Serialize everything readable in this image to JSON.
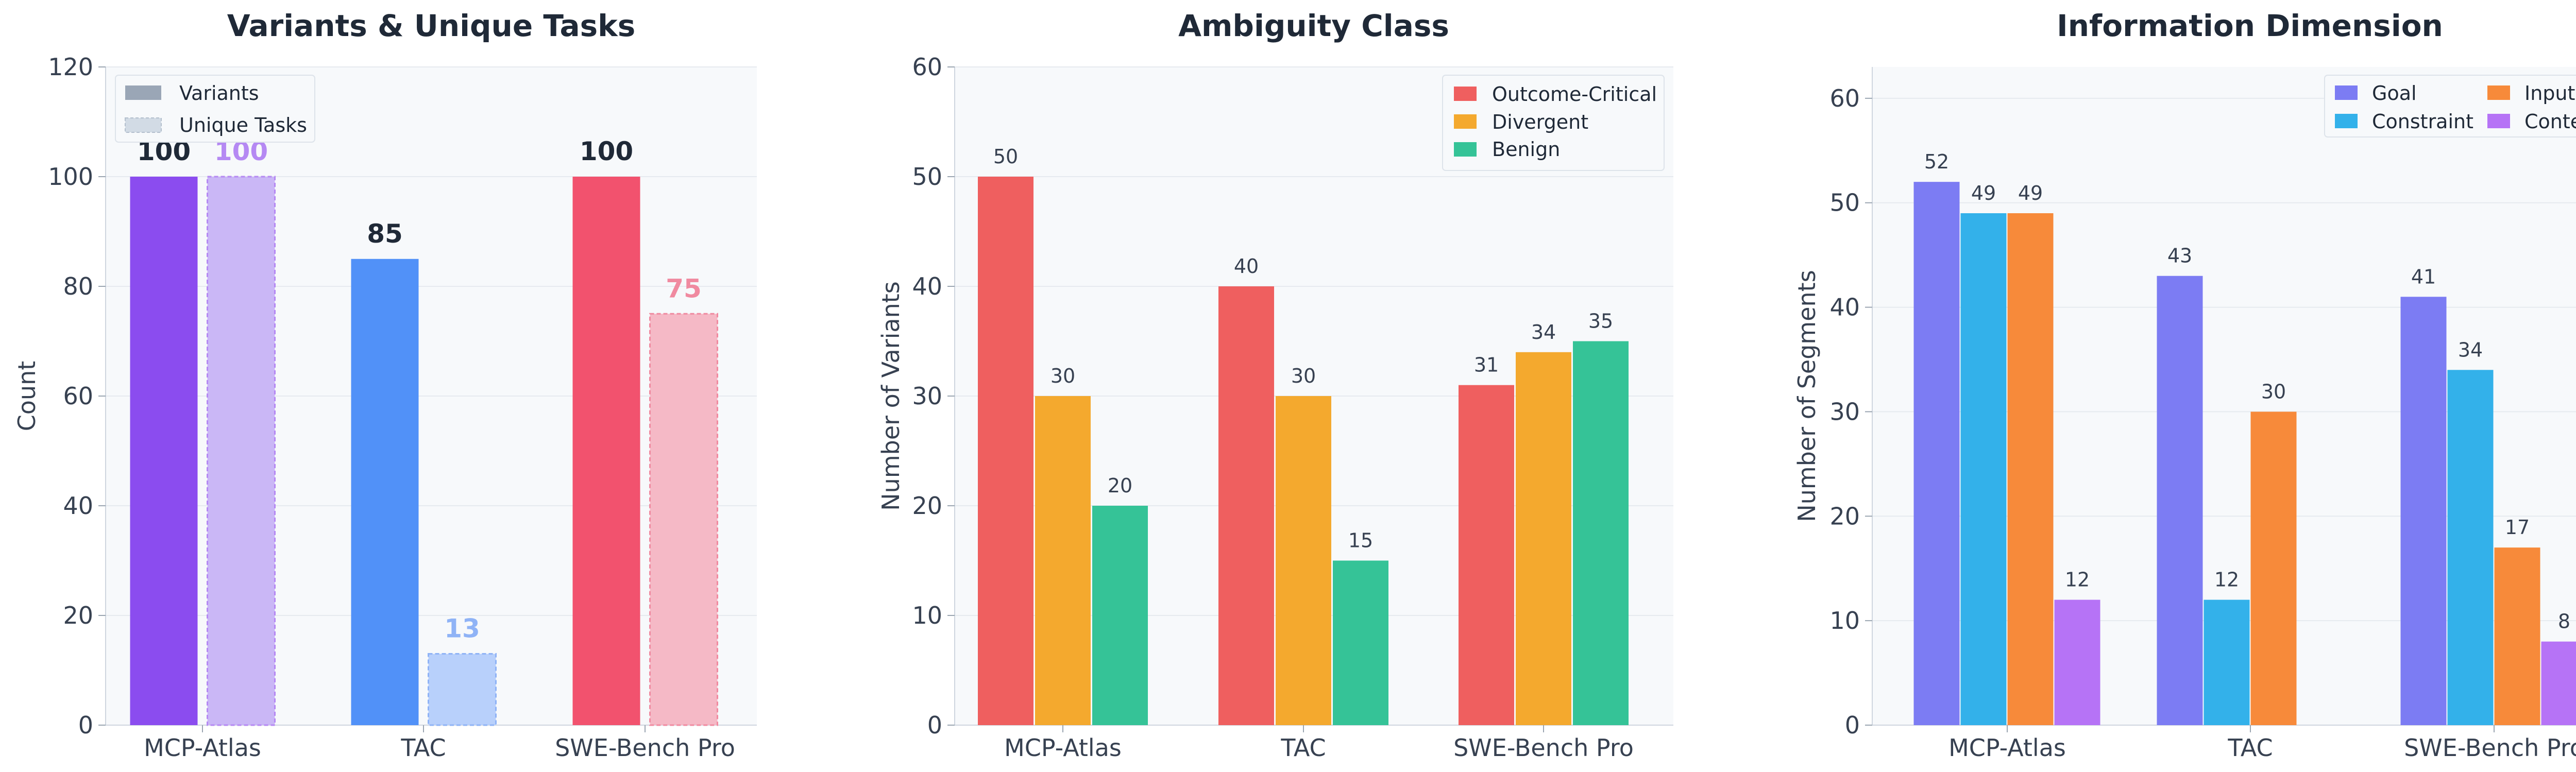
{
  "colors": {
    "variants": [
      "#8b4cef",
      "#5191f8",
      "#f2526e"
    ],
    "unique": [
      "#cab7f6",
      "#b8d0fb",
      "#f5b9c6"
    ],
    "unique_label": [
      "#b589f3",
      "#8fb3f6",
      "#f08aa0"
    ],
    "ambiguity": [
      "#ef5f5f",
      "#f4a92e",
      "#35c397"
    ],
    "dimension": [
      "#7c7cf3",
      "#33b1ea",
      "#f78a3a",
      "#b673f6"
    ]
  },
  "chart_data": [
    {
      "type": "bar",
      "title": "Variants & Unique Tasks",
      "xlabel": "",
      "ylabel": "Count",
      "ylim": [
        0,
        120
      ],
      "yticks": [
        "0",
        "20",
        "40",
        "60",
        "80",
        "100",
        "120"
      ],
      "categories": [
        "MCP-Atlas",
        "TAC",
        "SWE-Bench Pro"
      ],
      "series": [
        {
          "name": "Variants",
          "values": [
            100,
            85,
            100
          ]
        },
        {
          "name": "Unique Tasks",
          "values": [
            100,
            13,
            75
          ]
        }
      ],
      "legend": "top-left"
    },
    {
      "type": "bar",
      "title": "Ambiguity Class",
      "xlabel": "",
      "ylabel": "Number of Variants",
      "ylim": [
        0,
        60
      ],
      "yticks": [
        "0",
        "10",
        "20",
        "30",
        "40",
        "50",
        "60"
      ],
      "categories": [
        "MCP-Atlas",
        "TAC",
        "SWE-Bench Pro"
      ],
      "series": [
        {
          "name": "Outcome-Critical",
          "values": [
            50,
            40,
            31
          ]
        },
        {
          "name": "Divergent",
          "values": [
            30,
            30,
            34
          ]
        },
        {
          "name": "Benign",
          "values": [
            20,
            15,
            35
          ]
        }
      ],
      "legend": "top-right"
    },
    {
      "type": "bar",
      "title": "Information Dimension",
      "xlabel": "",
      "ylabel": "Number of Segments",
      "ylim": [
        0,
        63
      ],
      "yticks": [
        "0",
        "10",
        "20",
        "30",
        "40",
        "50",
        "60"
      ],
      "categories": [
        "MCP-Atlas",
        "TAC",
        "SWE-Bench Pro"
      ],
      "series": [
        {
          "name": "Goal",
          "values": [
            52,
            43,
            41
          ]
        },
        {
          "name": "Constraint",
          "values": [
            49,
            12,
            34
          ]
        },
        {
          "name": "Input",
          "values": [
            49,
            30,
            17
          ]
        },
        {
          "name": "Context",
          "values": [
            12,
            null,
            8
          ]
        }
      ],
      "legend": "top-right"
    }
  ]
}
